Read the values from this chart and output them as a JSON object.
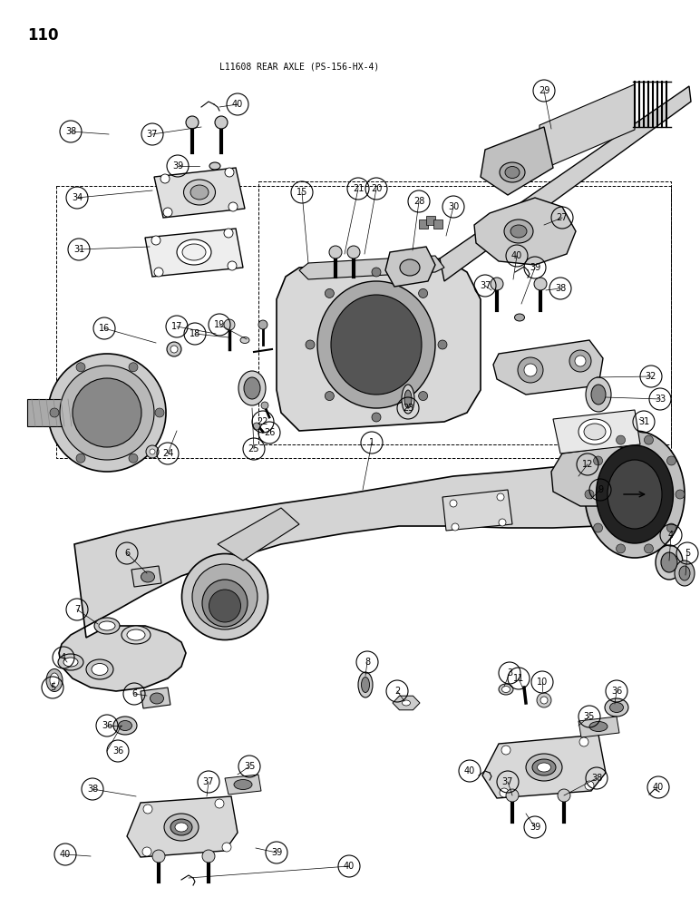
{
  "title": "L11608 REAR AXLE (PS-156-HX-4)",
  "page_number": "110",
  "bg": "#ffffff",
  "fg": "#000000",
  "figsize": [
    7.72,
    10.0
  ],
  "dpi": 100
}
